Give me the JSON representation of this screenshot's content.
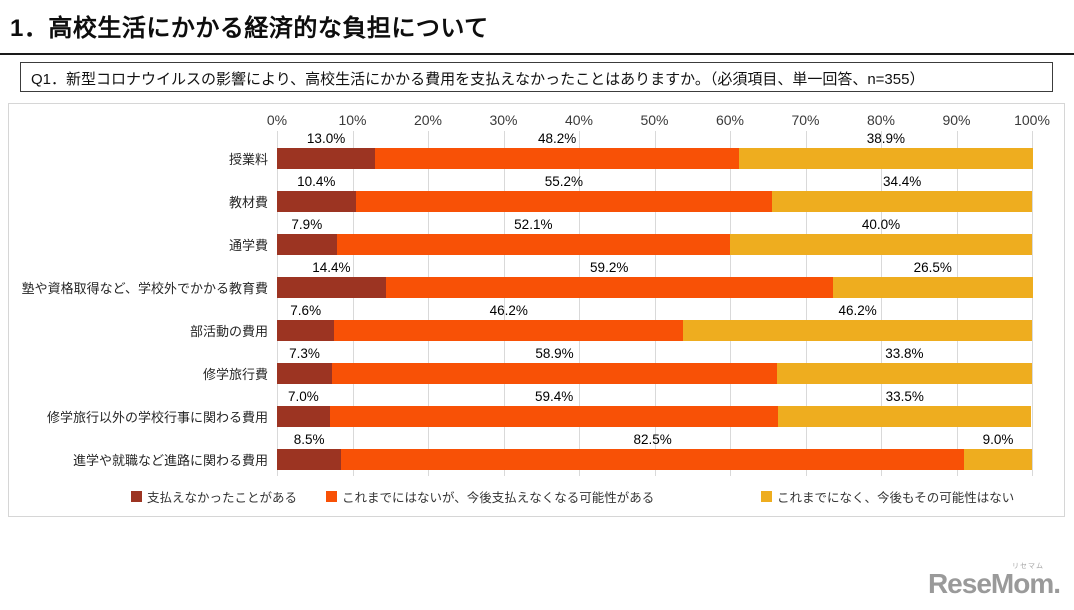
{
  "header": {
    "title": "1．高校生活にかかる経済的な負担について",
    "question": "Q1．新型コロナウイルスの影響により、高校生活にかかる費用を支払えなかったことはありますか。（必須項目、単一回答、n=355）"
  },
  "chart_data": {
    "type": "bar",
    "stacked": true,
    "orientation": "horizontal",
    "title": "",
    "xlabel": "",
    "ylabel": "",
    "xlim": [
      0,
      100
    ],
    "x_ticks": [
      "0%",
      "10%",
      "20%",
      "30%",
      "40%",
      "50%",
      "60%",
      "70%",
      "80%",
      "90%",
      "100%"
    ],
    "grid": true,
    "legend_position": "bottom",
    "value_label_format": "one_decimal_percent",
    "categories": [
      "授業料",
      "教材費",
      "通学費",
      "塾や資格取得など、学校外でかかる教育費",
      "部活動の費用",
      "修学旅行費",
      "修学旅行以外の学校行事に関わる費用",
      "進学や就職など進路に関わる費用"
    ],
    "series": [
      {
        "name": "支払えなかったことがある",
        "color": "#9c3422",
        "values": [
          13.0,
          10.4,
          7.9,
          14.4,
          7.6,
          7.3,
          7.0,
          8.5
        ]
      },
      {
        "name": "これまでにはないが、今後支払えなくなる可能性がある",
        "color": "#f85106",
        "values": [
          48.2,
          55.2,
          52.1,
          59.2,
          46.2,
          58.9,
          59.4,
          82.5
        ]
      },
      {
        "name": "これまでになく、今後もその可能性はない",
        "color": "#eead1f",
        "values": [
          38.9,
          34.4,
          40.0,
          26.5,
          46.2,
          33.8,
          33.5,
          9.0
        ]
      }
    ]
  },
  "style": {
    "grid_color": "#d9d9d9",
    "frame_border_color": "#d6d6d6",
    "tick_text_color": "#3a3a3a"
  },
  "footer": {
    "logo_text": "ReseMom.",
    "logo_ruby": "リセマム"
  }
}
